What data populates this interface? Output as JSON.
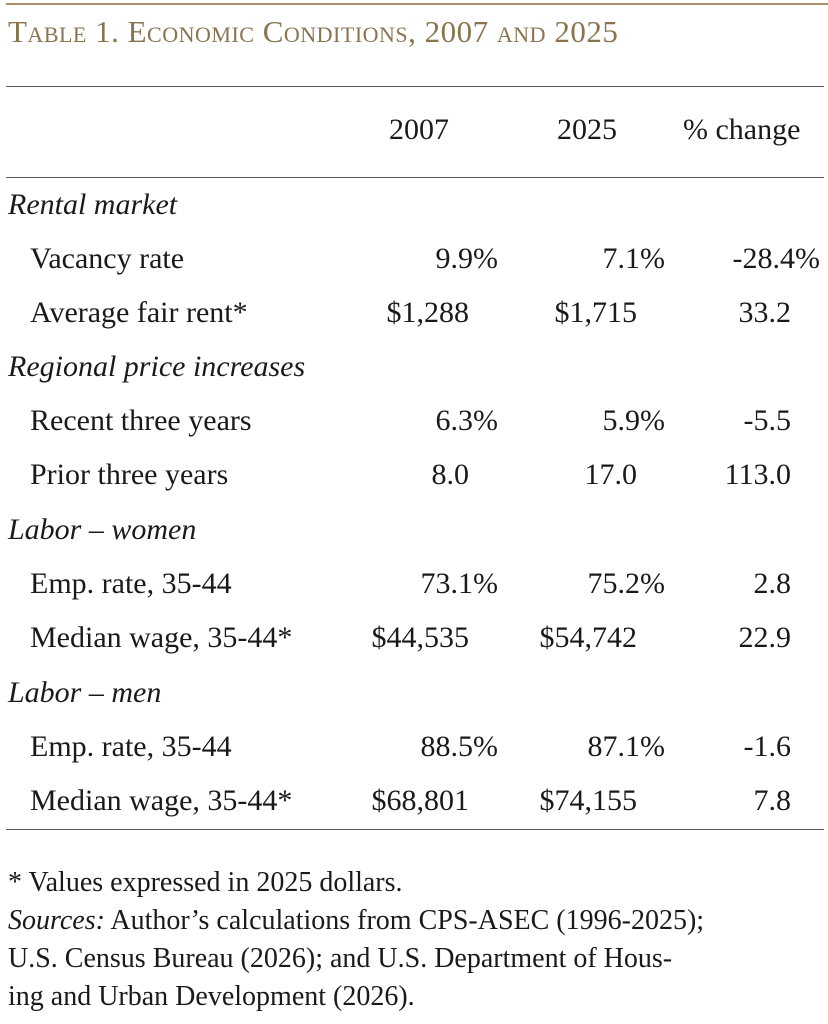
{
  "title": "Table 1. Economic Conditions, 2007 and 2025",
  "columns": [
    "2007",
    "2025",
    "% change"
  ],
  "sections": [
    {
      "label": "Rental market",
      "rows": [
        {
          "label": "Vacancy rate",
          "v2007": "9.9%",
          "v2025": "7.1%",
          "change": "-28.4%"
        },
        {
          "label": "Average fair rent*",
          "v2007": "$1,288",
          "v2025": "$1,715",
          "change": "33.2"
        }
      ]
    },
    {
      "label": "Regional price increases",
      "rows": [
        {
          "label": "Recent three years",
          "v2007": "6.3%",
          "v2025": "5.9%",
          "change": "-5.5"
        },
        {
          "label": "Prior three years",
          "v2007": "8.0",
          "v2025": "17.0",
          "change": "113.0"
        }
      ]
    },
    {
      "label": "Labor – women",
      "rows": [
        {
          "label": "Emp. rate, 35-44",
          "v2007": "73.1%",
          "v2025": "75.2%",
          "change": "2.8"
        },
        {
          "label": "Median wage, 35-44*",
          "v2007": "$44,535",
          "v2025": "$54,742",
          "change": "22.9"
        }
      ]
    },
    {
      "label": "Labor – men",
      "rows": [
        {
          "label": "Emp. rate, 35-44",
          "v2007": "88.5%",
          "v2025": "87.1%",
          "change": "-1.6"
        },
        {
          "label": "Median wage, 35-44*",
          "v2007": "$68,801",
          "v2025": "$74,155",
          "change": "7.8"
        }
      ]
    }
  ],
  "footnote": "* Values expressed in 2025 dollars.",
  "sources_label": "Sources:",
  "sources_line1": " Author’s calculations from CPS-ASEC (1996-2025);",
  "sources_line2": "U.S. Census Bureau (2026); and U.S. Department of Hous-",
  "sources_line3": "ing and Urban Development (2026)."
}
